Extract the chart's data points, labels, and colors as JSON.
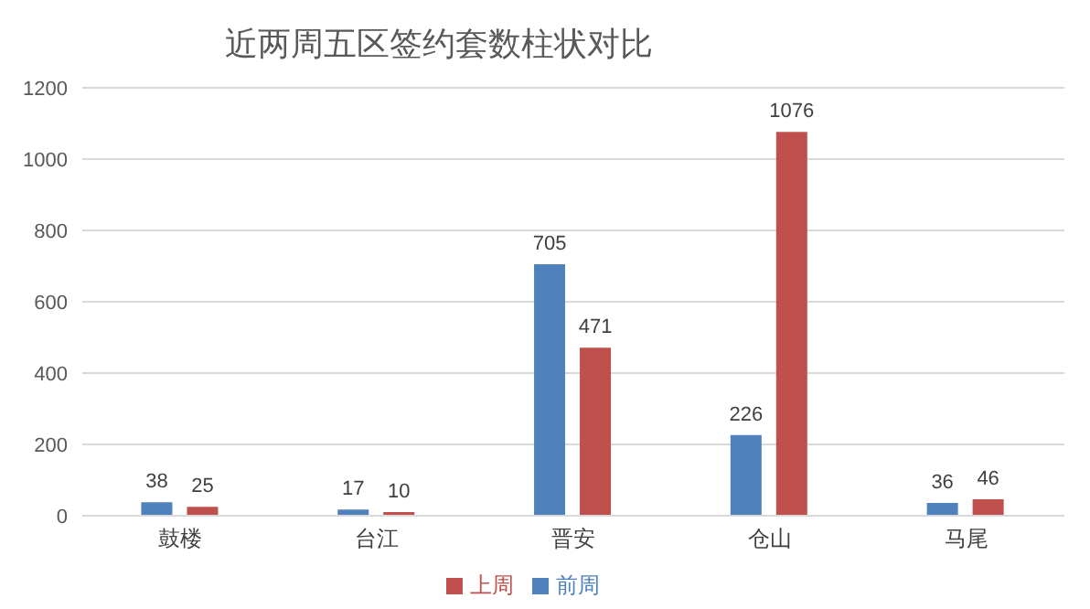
{
  "chart_data": {
    "type": "bar",
    "title": "近两周五区签约套数柱状对比",
    "categories": [
      "鼓楼",
      "台江",
      "晋安",
      "仓山",
      "马尾"
    ],
    "series": [
      {
        "name": "前周",
        "color": "#4f81bd",
        "values": [
          38,
          17,
          705,
          226,
          36
        ]
      },
      {
        "name": "上周",
        "color": "#c0504d",
        "values": [
          25,
          10,
          471,
          1076,
          46
        ]
      }
    ],
    "ylim": [
      0,
      1200
    ],
    "yticks": [
      0,
      200,
      400,
      600,
      800,
      1000,
      1200
    ],
    "grid": "y",
    "legend": "bottom",
    "data_labels": true
  }
}
